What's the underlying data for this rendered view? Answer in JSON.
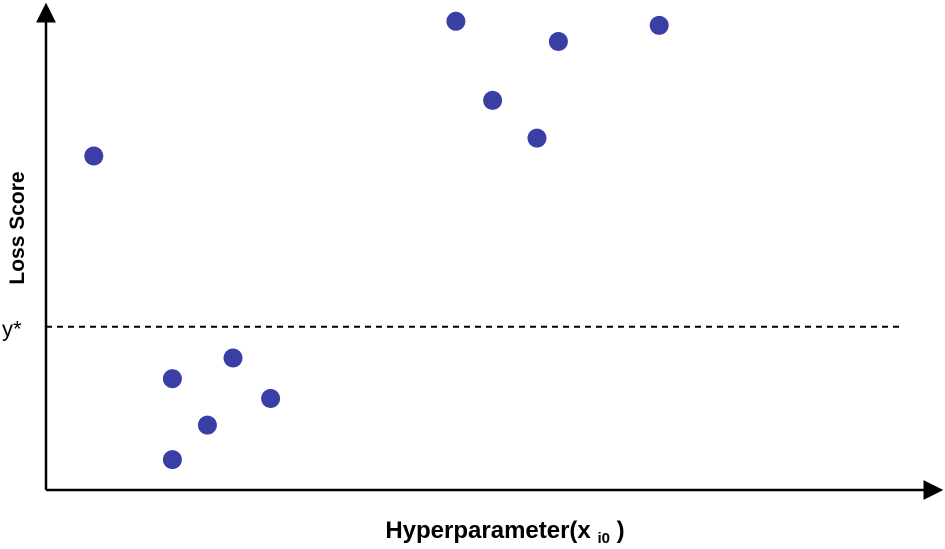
{
  "chart_data": {
    "type": "scatter",
    "title": "",
    "xlabel": "Hyperparameter(x",
    "xlabel_subscript": "i0",
    "xlabel_suffix": ")",
    "ylabel": "Loss Score",
    "xlim": [
      0,
      100
    ],
    "ylim": [
      0,
      100
    ],
    "grid": false,
    "ticks_visible": false,
    "threshold": {
      "label": "y*",
      "value": 35.5,
      "style": "dashed"
    },
    "series": [
      {
        "color": "#3a3fa6",
        "points": [
          {
            "x": 5.6,
            "y": 72.6
          },
          {
            "x": 14.8,
            "y": 24.2
          },
          {
            "x": 14.8,
            "y": 6.6
          },
          {
            "x": 18.9,
            "y": 14.1
          },
          {
            "x": 21.9,
            "y": 28.7
          },
          {
            "x": 26.3,
            "y": 19.9
          },
          {
            "x": 48.0,
            "y": 101.9
          },
          {
            "x": 52.3,
            "y": 84.7
          },
          {
            "x": 57.5,
            "y": 76.5
          },
          {
            "x": 60.0,
            "y": 97.5
          },
          {
            "x": 71.8,
            "y": 101.0
          }
        ]
      }
    ]
  }
}
